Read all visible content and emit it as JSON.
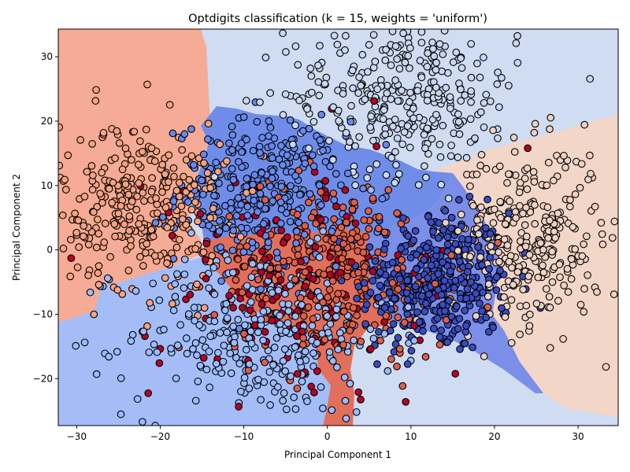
{
  "chart_data": {
    "type": "scatter",
    "title": "Optdigits classification (k = 15, weights = 'uniform')",
    "xlabel": "Principal Component 1",
    "ylabel": "Principal Component 2",
    "xlim": [
      -32.2,
      34.8
    ],
    "ylim": [
      -27.3,
      34.3
    ],
    "x_ticks": [
      -30,
      -20,
      -10,
      0,
      10,
      20,
      30
    ],
    "y_ticks": [
      -20,
      -10,
      0,
      10,
      20,
      30
    ],
    "grid": false,
    "legend": "none",
    "colormap": "coolwarm",
    "class_colors": [
      "#3b4cc0",
      "#6788ee",
      "#9abbff",
      "#c9d7f0",
      "#edd1c2",
      "#f7a889",
      "#e26952",
      "#b40426"
    ],
    "decision_region_colors": [
      "#7b8ee8",
      "#6f8de8",
      "#a5bdf7",
      "#cfdcf2",
      "#f2d6c8",
      "#f5ab95",
      "#e16f5b"
    ],
    "marker_edge_color": "#000000",
    "series": [
      {
        "class_index": 0,
        "color": "#3b4cc0",
        "center": [
          13,
          -5
        ],
        "spread": [
          4.5,
          5.5
        ],
        "count": 380
      },
      {
        "class_index": 1,
        "color": "#6788ee",
        "center": [
          -8,
          9
        ],
        "spread": [
          5,
          5.5
        ],
        "count": 300
      },
      {
        "class_index": 2,
        "color": "#9abbff",
        "center": [
          -8,
          -13
        ],
        "spread": [
          8,
          6.5
        ],
        "count": 330
      },
      {
        "class_index": 3,
        "color": "#c9d7f0",
        "center": [
          9,
          24
        ],
        "spread": [
          7,
          6
        ],
        "count": 330
      },
      {
        "class_index": 4,
        "color": "#edd1c2",
        "center": [
          24,
          2
        ],
        "spread": [
          4.5,
          7
        ],
        "count": 320
      },
      {
        "class_index": 5,
        "color": "#f5a282",
        "center": [
          -22,
          7
        ],
        "spread": [
          5,
          6.5
        ],
        "count": 330
      },
      {
        "class_index": 6,
        "color": "#dd5f4b",
        "center": [
          1,
          -3
        ],
        "spread": [
          7,
          7
        ],
        "count": 300
      },
      {
        "class_index": 7,
        "color": "#b40426",
        "center": [
          -5,
          -6
        ],
        "spread": [
          8,
          10
        ],
        "count": 150
      }
    ]
  }
}
